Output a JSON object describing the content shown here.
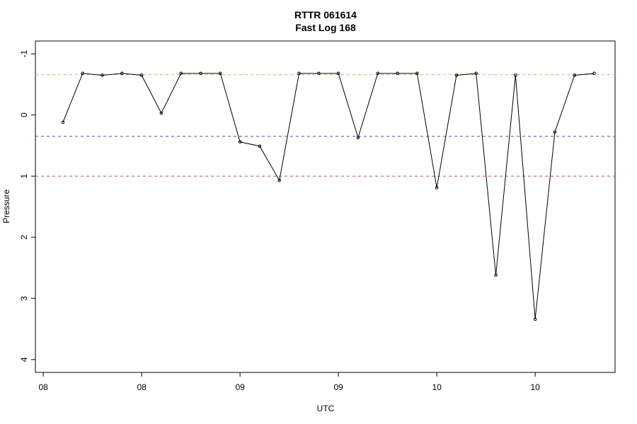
{
  "chart_data": {
    "type": "line",
    "title": "RTTR 061614",
    "subtitle": "Fast Log 168",
    "x_label": "UTC",
    "y_label": "Pressure",
    "x": [
      1,
      2,
      3,
      4,
      5,
      6,
      7,
      8,
      9,
      10,
      11,
      12,
      13,
      14,
      15,
      16,
      17,
      18,
      19,
      20,
      21,
      22,
      23,
      24,
      25,
      26,
      27,
      28
    ],
    "series": [
      {
        "color": "#000000",
        "values": [
          0.12,
          -0.68,
          -0.65,
          -0.68,
          -0.65,
          -0.03,
          -0.68,
          -0.68,
          -0.68,
          0.44,
          0.51,
          1.07,
          -0.68,
          -0.68,
          -0.68,
          0.37,
          -0.68,
          -0.68,
          -0.68,
          1.19,
          -0.65,
          -0.68,
          2.62,
          -0.65,
          3.34,
          0.28,
          -0.65,
          -0.68
        ]
      }
    ],
    "xlim": [
      -0.4,
      29.06
    ],
    "xticks": [
      {
        "value": 0,
        "label": "08"
      },
      {
        "value": 5,
        "label": "08"
      },
      {
        "value": 10,
        "label": "09"
      },
      {
        "value": 15,
        "label": "09"
      },
      {
        "value": 20,
        "label": "10"
      },
      {
        "value": 25,
        "label": "10"
      }
    ],
    "ylim": [
      4.21,
      -1.21
    ],
    "yticks": [
      -1,
      0,
      1,
      2,
      3,
      4
    ],
    "hlines": [
      {
        "value": -0.66,
        "color": "#7ee35a"
      },
      {
        "value": 0.35,
        "color": "#4b4bc8"
      },
      {
        "value": 1.0,
        "color": "#e0405a"
      }
    ]
  }
}
